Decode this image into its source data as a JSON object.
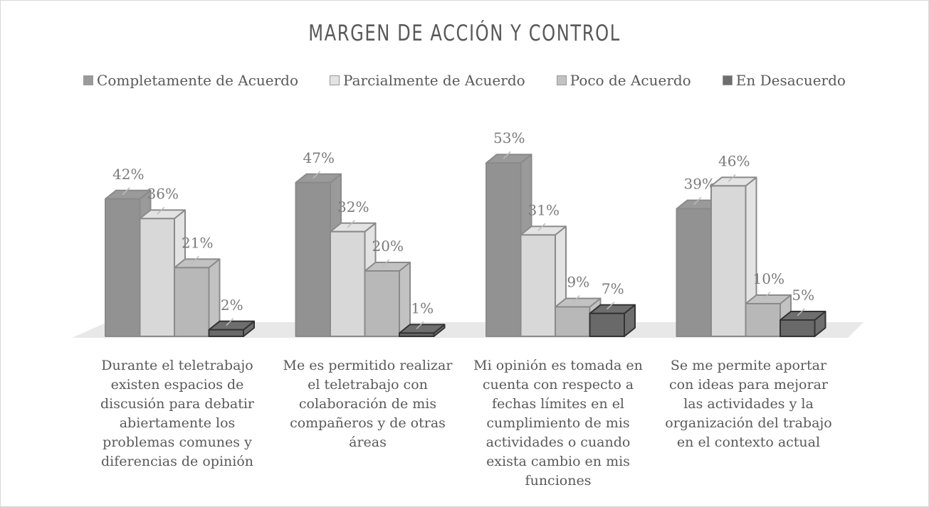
{
  "chart_data": {
    "type": "bar3d",
    "title": "MARGEN DE ACCIÓN Y CONTROL",
    "categories": [
      "Durante el teletrabajo existen espacios de discusión para debatir abiertamente los problemas comunes y diferencias de opinión",
      "Me es permitido realizar el teletrabajo con colaboración de mis compañeros y de otras áreas",
      "Mi opinión es tomada en cuenta con respecto a fechas límites en el cumplimiento de mis actividades o cuando exista cambio en mis funciones",
      "Se me permite aportar con ideas para mejorar las actividades y la organización del trabajo en el contexto actual"
    ],
    "series": [
      {
        "name": "Completamente de Acuerdo",
        "color": "#9a9a9a",
        "values": [
          42,
          47,
          53,
          39
        ],
        "value_labels": [
          "42%",
          "47%",
          "53%",
          "39%"
        ]
      },
      {
        "name": "Parcialmente de Acuerdo",
        "color": "#e3e3e3",
        "values": [
          36,
          32,
          31,
          46
        ],
        "value_labels": [
          "36%",
          "32%",
          "31%",
          "46%"
        ]
      },
      {
        "name": "Poco de Acuerdo",
        "color": "#c2c2c2",
        "values": [
          21,
          20,
          9,
          10
        ],
        "value_labels": [
          "21%",
          "20%",
          "9%",
          "10%"
        ]
      },
      {
        "name": "En Desacuerdo",
        "color": "#6e6e6e",
        "values": [
          2,
          1,
          7,
          5
        ],
        "value_labels": [
          "2%",
          "1%",
          "7%",
          "5%"
        ]
      }
    ],
    "legend": "top"
  }
}
